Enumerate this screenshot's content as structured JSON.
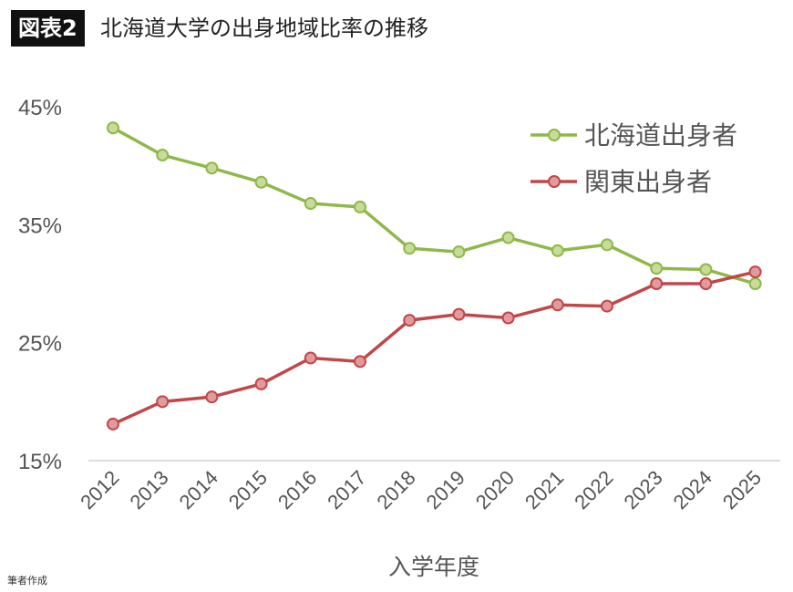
{
  "header": {
    "badge": "図表2",
    "title": "北海道大学の出身地域比率の推移"
  },
  "footnote": "筆者作成",
  "chart_data": {
    "type": "line",
    "title": "北海道大学の出身地域比率の推移",
    "xlabel": "入学年度",
    "ylabel": "",
    "categories": [
      "2012",
      "2013",
      "2014",
      "2015",
      "2016",
      "2017",
      "2018",
      "2019",
      "2020",
      "2021",
      "2022",
      "2023",
      "2024",
      "2025"
    ],
    "ylim": [
      15,
      45
    ],
    "yticks": [
      15,
      25,
      35,
      45
    ],
    "ytick_labels": [
      "15%",
      "25%",
      "35%",
      "45%"
    ],
    "grid": false,
    "legend": "top-right",
    "series": [
      {
        "name": "北海道出身者",
        "color": "#8fb84a",
        "marker_fill": "#c6dc97",
        "values": [
          43.2,
          40.9,
          39.8,
          38.6,
          36.8,
          36.5,
          33.0,
          32.7,
          33.9,
          32.8,
          33.3,
          31.3,
          31.2,
          30.0
        ]
      },
      {
        "name": "関東出身者",
        "color": "#c0474a",
        "marker_fill": "#e29a9b",
        "values": [
          18.1,
          20.0,
          20.4,
          21.5,
          23.7,
          23.4,
          26.9,
          27.4,
          27.1,
          28.2,
          28.1,
          30.0,
          30.0,
          31.0
        ]
      }
    ]
  }
}
